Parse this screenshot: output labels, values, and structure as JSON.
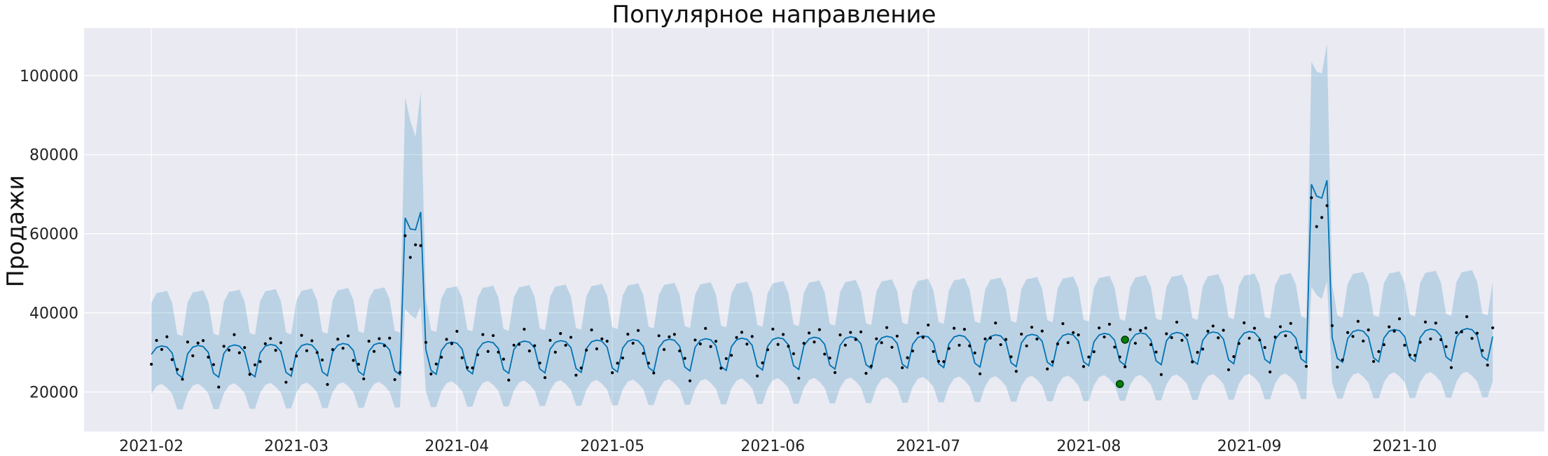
{
  "chart_data": {
    "type": "line",
    "title": "Популярное направление",
    "xlabel": "",
    "ylabel": "Продажи",
    "x_range": [
      "2021-01-19",
      "2021-10-28"
    ],
    "ylim": [
      10000,
      112000
    ],
    "grid": true,
    "background": "#eaeaf2",
    "x_ticks": [
      "2021-02",
      "2021-03",
      "2021-04",
      "2021-05",
      "2021-06",
      "2021-07",
      "2021-08",
      "2021-09",
      "2021-10"
    ],
    "y_ticks": [
      "20000",
      "40000",
      "60000",
      "80000",
      "100000"
    ],
    "y_tick_values": [
      20000,
      40000,
      60000,
      80000,
      100000
    ],
    "x_tick_dates": [
      "2021-02-01",
      "2021-03-01",
      "2021-04-01",
      "2021-05-01",
      "2021-06-01",
      "2021-07-01",
      "2021-08-01",
      "2021-09-01",
      "2021-10-01"
    ],
    "forecast": {
      "start": "2021-02-01",
      "end": "2021-10-18",
      "weekly_profile_yhat": [
        29500,
        31200,
        31600,
        31300,
        29800,
        24500,
        23500
      ],
      "weekly_profile_upper": [
        42500,
        45000,
        45200,
        45500,
        42500,
        34500,
        34000
      ],
      "weekly_profile_lower": [
        19500,
        21500,
        22000,
        21000,
        19500,
        15500,
        15500
      ],
      "trend_start": 0,
      "trend_end": 4500,
      "holiday_spikes": [
        {
          "start": "2021-03-22",
          "yhat": [
            64000,
            61200,
            61000,
            65500
          ],
          "upper": [
            94500,
            88500,
            84500,
            96000
          ],
          "lower": [
            41000,
            39500,
            38500,
            41500
          ]
        },
        {
          "start": "2021-09-13",
          "yhat": [
            72500,
            69500,
            69000,
            73500
          ],
          "upper": [
            103500,
            101000,
            100500,
            108000
          ],
          "lower": [
            46500,
            44500,
            43500,
            48000
          ]
        }
      ],
      "line_color": "#0072b2",
      "band_color": "#0072b2"
    },
    "actual_color": "#000000",
    "anomalies": [
      {
        "date": "2021-08-07",
        "y": 22000
      },
      {
        "date": "2021-08-08",
        "y": 33200
      }
    ],
    "anomaly_color": "#008000"
  }
}
